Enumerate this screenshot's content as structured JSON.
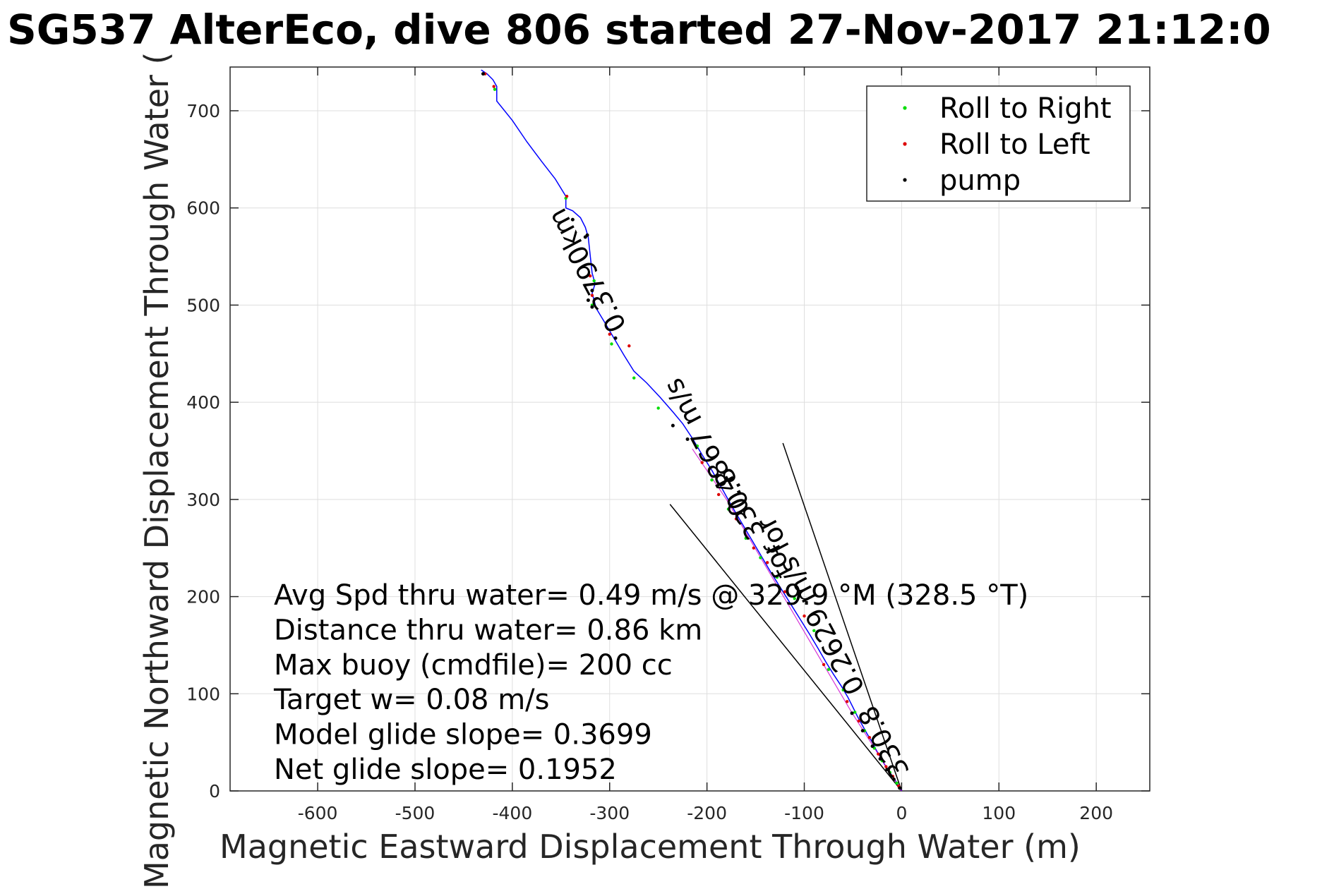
{
  "chart_data": {
    "type": "scatter",
    "title": "SG537 AlterEco, dive 806 started 27-Nov-2017 21:12:0",
    "xlabel": "Magnetic Eastward Displacement Through Water (m)",
    "ylabel": "Magnetic Northward Displacement Through Water (",
    "xlim": [
      -690,
      255
    ],
    "ylim": [
      0,
      745
    ],
    "xticks": [
      -600,
      -500,
      -400,
      -300,
      -200,
      -100,
      0,
      100,
      200
    ],
    "yticks": [
      0,
      100,
      200,
      300,
      400,
      500,
      600,
      700
    ],
    "grid": true,
    "legend_position": "top-right",
    "legend": [
      {
        "name": "Roll to Right",
        "color": "#00dd00"
      },
      {
        "name": "Roll to Left",
        "color": "#dd0000"
      },
      {
        "name": "pump",
        "color": "#000000"
      }
    ],
    "trajectory": {
      "color": "#0000ff",
      "x": [
        0,
        -3,
        -6,
        -10,
        -14,
        -18,
        -22,
        -26,
        -30,
        -35,
        -40,
        -45,
        -50,
        -55,
        -62,
        -70,
        -78,
        -86,
        -95,
        -105,
        -115,
        -125,
        -135,
        -145,
        -155,
        -165,
        -175,
        -185,
        -195,
        -205,
        -215,
        -225,
        -235,
        -248,
        -262,
        -275,
        -285,
        -295,
        -305,
        -314,
        -316,
        -318,
        -315,
        -318,
        -322,
        -325,
        -330,
        -338,
        -345,
        -345,
        -356,
        -370,
        -385,
        -400,
        -416,
        -416,
        -420,
        -426,
        -432
      ],
      "y": [
        0,
        5,
        10,
        16,
        22,
        28,
        35,
        42,
        50,
        58,
        67,
        76,
        86,
        96,
        108,
        120,
        133,
        147,
        162,
        178,
        194,
        210,
        226,
        243,
        260,
        277,
        294,
        312,
        330,
        346,
        363,
        378,
        390,
        405,
        420,
        432,
        448,
        465,
        482,
        497,
        505,
        512,
        522,
        533,
        570,
        580,
        590,
        597,
        600,
        612,
        630,
        648,
        668,
        690,
        710,
        725,
        732,
        738,
        742
      ]
    },
    "roll_right_points": {
      "x": [
        -5,
        -12,
        -20,
        -28,
        -38,
        -48,
        -60,
        -75,
        -90,
        -110,
        -128,
        -145,
        -160,
        -178,
        -195,
        -210,
        -250,
        -275,
        -298,
        -318,
        -316,
        -418,
        -345
      ],
      "y": [
        8,
        19,
        31,
        44,
        62,
        81,
        104,
        125,
        165,
        198,
        220,
        240,
        260,
        290,
        320,
        355,
        394,
        425,
        460,
        500,
        525,
        722,
        610
      ]
    },
    "roll_left_points": {
      "x": [
        -3,
        -9,
        -16,
        -24,
        -33,
        -44,
        -56,
        -80,
        -100,
        -120,
        -138,
        -152,
        -170,
        -188,
        -205,
        -280,
        -300,
        -318,
        -320,
        -344,
        -419,
        -428
      ],
      "y": [
        5,
        15,
        25,
        38,
        55,
        72,
        92,
        130,
        180,
        205,
        235,
        250,
        280,
        305,
        338,
        458,
        470,
        510,
        530,
        612,
        725,
        738
      ]
    },
    "pump_points": {
      "x": [
        -2,
        -8,
        -15,
        -22,
        -30,
        -40,
        -51,
        -220,
        -235,
        -294,
        -318,
        -322,
        -318,
        -323,
        -338,
        -325,
        -430
      ],
      "y": [
        3,
        12,
        22,
        33,
        46,
        62,
        80,
        362,
        376,
        466,
        498,
        505,
        515,
        572,
        588,
        570,
        738
      ]
    },
    "pump_line": {
      "color": "#cc00cc",
      "x": [
        0,
        -52,
        -180,
        -215
      ],
      "y": [
        0,
        82,
        300,
        352
      ]
    },
    "reference_lines": [
      {
        "x": [
          0,
          -238
        ],
        "y": [
          0,
          295
        ]
      },
      {
        "x": [
          0,
          -122
        ],
        "y": [
          0,
          358
        ]
      }
    ],
    "trajectory_labels": [
      {
        "text": "0.3790km",
        "x": -315,
        "y": 540
      },
      {
        "text": "330.8",
        "x": -158,
        "y": 300
      },
      {
        "text": "0.4867 m/s",
        "x": -192,
        "y": 358
      },
      {
        "text": "330.8",
        "x": -10,
        "y": 55
      },
      {
        "text": "0.2629 m/s for",
        "x": -85,
        "y": 195
      },
      {
        "text": "for",
        "x": -120,
        "y": 242
      }
    ],
    "annotations": [
      "Avg Spd thru water=  0.49 m/s @ 329.9 °M (328.5 °T)",
      "Distance thru water=  0.86 km",
      "Max buoy (cmdfile)= 200 cc",
      "Target w= 0.08 m/s",
      "Model glide slope= 0.3699",
      "Net glide slope= 0.1952"
    ]
  }
}
